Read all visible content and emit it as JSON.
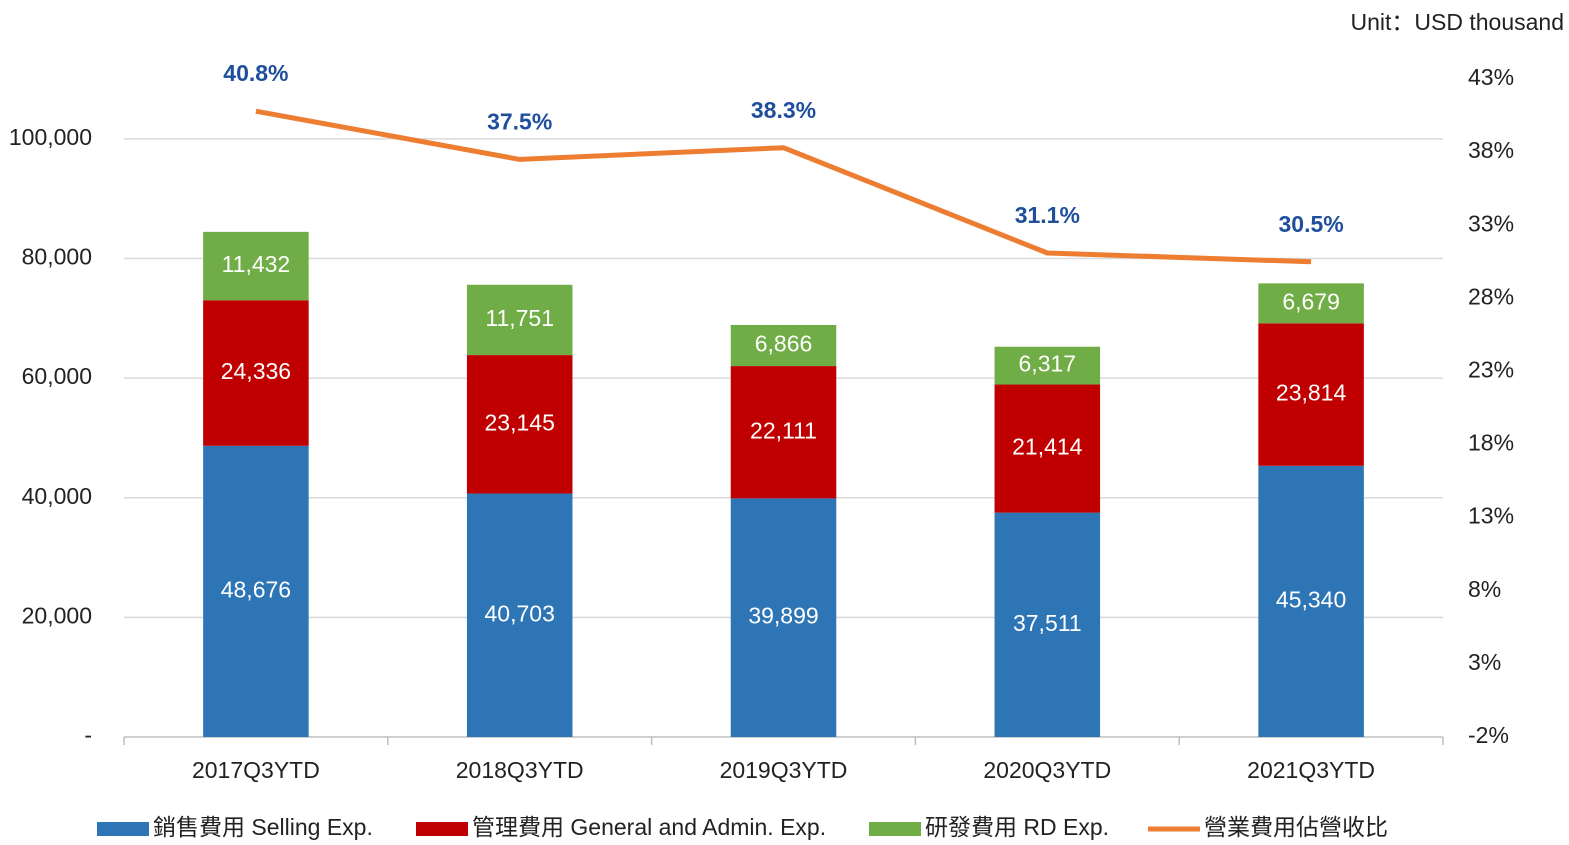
{
  "chart_data": {
    "type": "bar",
    "stacked": true,
    "annotation": "Unit：USD thousand",
    "categories": [
      "2017Q3YTD",
      "2018Q3YTD",
      "2019Q3YTD",
      "2020Q3YTD",
      "2021Q3YTD"
    ],
    "series": [
      {
        "name": "銷售費用 Selling Exp.",
        "color": "#2e75b6",
        "values": [
          48676,
          40703,
          39899,
          37511,
          45340
        ],
        "value_labels": [
          "48,676",
          "40,703",
          "39,899",
          "37,511",
          "45,340"
        ]
      },
      {
        "name": "管理費用 General and Admin. Exp.",
        "color": "#c00000",
        "values": [
          24336,
          23145,
          22111,
          21414,
          23814
        ],
        "value_labels": [
          "24,336",
          "23,145",
          "22,111",
          "21,414",
          "23,814"
        ]
      },
      {
        "name": "研發費用 RD Exp.",
        "color": "#70ad47",
        "values": [
          11432,
          11751,
          6866,
          6317,
          6679
        ],
        "value_labels": [
          "11,432",
          "11,751",
          "6,866",
          "6,317",
          "6,679"
        ]
      },
      {
        "name": "營業費用佔營收比",
        "type": "line",
        "axis": "y2",
        "color": "#ed7d31",
        "values": [
          40.8,
          37.5,
          38.3,
          31.1,
          30.5
        ],
        "value_labels": [
          "40.8%",
          "37.5%",
          "38.3%",
          "31.1%",
          "30.5%"
        ]
      }
    ],
    "ylim": [
      0,
      110000
    ],
    "yticks": [
      {
        "value": 0,
        "label": "-"
      },
      {
        "value": 20000,
        "label": "20,000"
      },
      {
        "value": 40000,
        "label": "40,000"
      },
      {
        "value": 60000,
        "label": "60,000"
      },
      {
        "value": 80000,
        "label": "80,000"
      },
      {
        "value": 100000,
        "label": "100,000"
      }
    ],
    "y2lim": [
      -2,
      43
    ],
    "y2ticks": [
      {
        "value": -2,
        "label": "-2%"
      },
      {
        "value": 3,
        "label": "3%"
      },
      {
        "value": 8,
        "label": "8%"
      },
      {
        "value": 13,
        "label": "13%"
      },
      {
        "value": 18,
        "label": "18%"
      },
      {
        "value": 23,
        "label": "23%"
      },
      {
        "value": 28,
        "label": "28%"
      },
      {
        "value": 33,
        "label": "33%"
      },
      {
        "value": 38,
        "label": "38%"
      },
      {
        "value": 43,
        "label": "43%"
      }
    ],
    "grid": true,
    "legend": "bottom"
  }
}
